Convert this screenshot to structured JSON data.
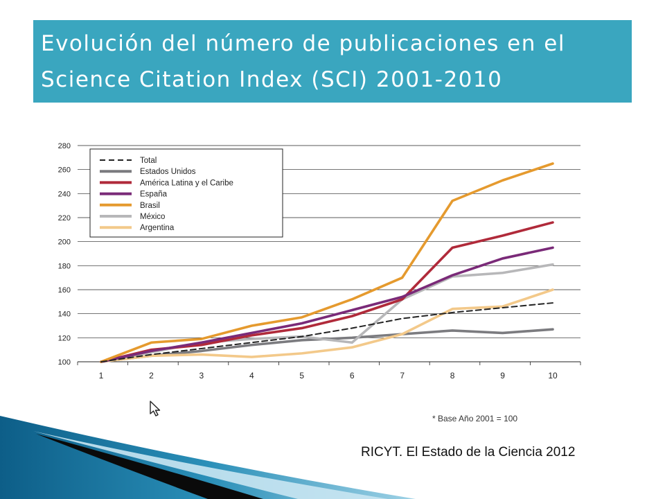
{
  "title": {
    "line1": "Evolución del número de publicaciones en el",
    "line2": "Science Citation Index (SCI) 2001-2010"
  },
  "source": "RICYT. El Estado de la Ciencia 2012",
  "footnote": "* Base Año 2001 = 100",
  "chart_data": {
    "type": "line",
    "title": "",
    "xlabel": "",
    "ylabel": "",
    "x": [
      1,
      2,
      3,
      4,
      5,
      6,
      7,
      8,
      9,
      10
    ],
    "xticks": [
      "1",
      "2",
      "3",
      "4",
      "5",
      "6",
      "7",
      "8",
      "9",
      "10"
    ],
    "ylim": [
      100,
      280
    ],
    "yticks": [
      "100",
      "120",
      "140",
      "160",
      "180",
      "200",
      "220",
      "240",
      "260",
      "280"
    ],
    "grid": "horizontal",
    "legend_position": "top-left",
    "series": [
      {
        "name": "Total",
        "color": "#222222",
        "dashed": true,
        "values": [
          100,
          106,
          111,
          116,
          121,
          128,
          136,
          141,
          145,
          149
        ]
      },
      {
        "name": "Estados Unidos",
        "color": "#7b7b7f",
        "dashed": false,
        "values": [
          100,
          105,
          109,
          114,
          118,
          120,
          123,
          126,
          124,
          127
        ]
      },
      {
        "name": "América Latina y el Caribe",
        "color": "#b02a3a",
        "dashed": false,
        "values": [
          100,
          110,
          114,
          122,
          128,
          138,
          152,
          195,
          205,
          216
        ]
      },
      {
        "name": "España",
        "color": "#7a2a78",
        "dashed": false,
        "values": [
          100,
          109,
          116,
          124,
          132,
          143,
          154,
          172,
          186,
          195
        ]
      },
      {
        "name": "Brasil",
        "color": "#e59a2e",
        "dashed": false,
        "values": [
          100,
          116,
          119,
          130,
          137,
          152,
          170,
          234,
          251,
          265
        ]
      },
      {
        "name": "México",
        "color": "#b7b7b9",
        "dashed": false,
        "values": [
          100,
          108,
          116,
          119,
          121,
          116,
          152,
          171,
          174,
          181
        ]
      },
      {
        "name": "Argentina",
        "color": "#f3c98a",
        "dashed": false,
        "values": [
          100,
          105,
          106,
          104,
          107,
          112,
          123,
          144,
          146,
          160
        ]
      }
    ]
  }
}
